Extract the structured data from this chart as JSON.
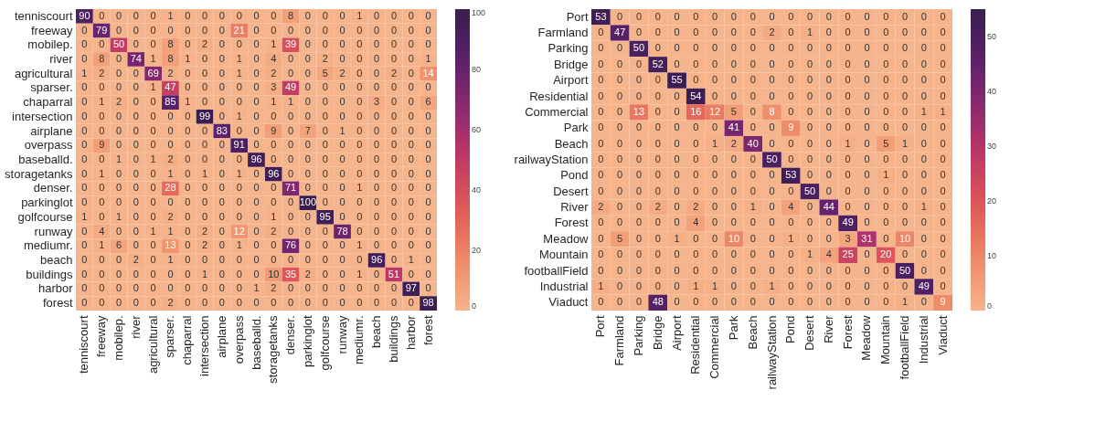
{
  "chart_data": [
    {
      "type": "heatmap",
      "categories": [
        "tenniscourt",
        "freeway",
        "mobilep.",
        "river",
        "agricultural",
        "sparser.",
        "chaparral",
        "intersection",
        "airplane",
        "overpass",
        "baseballd.",
        "storagetanks",
        "denser.",
        "parkinglot",
        "golfcourse",
        "runway",
        "mediumr.",
        "beach",
        "buildings",
        "harbor",
        "forest"
      ],
      "y_categories": [
        "tenniscourt",
        "freeway",
        "mobilep.",
        "river",
        "agricultural",
        "sparser.",
        "chaparral",
        "intersection",
        "airplane",
        "overpass",
        "baseballd.",
        "storagetanks",
        "denser.",
        "parkinglot",
        "golfcourse",
        "runway",
        "mediumr.",
        "beach",
        "buildings",
        "harbor",
        "forest"
      ],
      "cells": [
        [
          90,
          0,
          0,
          0,
          0,
          1,
          0,
          0,
          0,
          0,
          0,
          0,
          8,
          0,
          0,
          0,
          1,
          0,
          0,
          0,
          0
        ],
        [
          0,
          79,
          0,
          0,
          0,
          0,
          0,
          0,
          0,
          21,
          0,
          0,
          0,
          0,
          0,
          0,
          0,
          0,
          0,
          0,
          0
        ],
        [
          0,
          0,
          50,
          0,
          0,
          8,
          0,
          2,
          0,
          0,
          0,
          1,
          39,
          0,
          0,
          0,
          0,
          0,
          0,
          0,
          0
        ],
        [
          0,
          8,
          0,
          74,
          1,
          8,
          1,
          0,
          0,
          1,
          0,
          4,
          0,
          0,
          2,
          0,
          0,
          0,
          0,
          0,
          1
        ],
        [
          1,
          2,
          0,
          0,
          69,
          2,
          0,
          0,
          0,
          1,
          0,
          2,
          0,
          0,
          5,
          2,
          0,
          0,
          2,
          0,
          14
        ],
        [
          0,
          0,
          0,
          0,
          1,
          47,
          0,
          0,
          0,
          0,
          0,
          3,
          49,
          0,
          0,
          0,
          0,
          0,
          0,
          0,
          0
        ],
        [
          0,
          1,
          2,
          0,
          0,
          85,
          1,
          0,
          0,
          0,
          0,
          1,
          1,
          0,
          0,
          0,
          0,
          3,
          0,
          0,
          6
        ],
        [
          0,
          0,
          0,
          0,
          0,
          0,
          0,
          99,
          0,
          1,
          0,
          0,
          0,
          0,
          0,
          0,
          0,
          0,
          0,
          0,
          0
        ],
        [
          0,
          0,
          0,
          0,
          0,
          0,
          0,
          0,
          83,
          0,
          0,
          9,
          0,
          7,
          0,
          1,
          0,
          0,
          0,
          0,
          0
        ],
        [
          0,
          9,
          0,
          0,
          0,
          0,
          0,
          0,
          0,
          91,
          0,
          0,
          0,
          0,
          0,
          0,
          0,
          0,
          0,
          0,
          0
        ],
        [
          0,
          0,
          1,
          0,
          1,
          2,
          0,
          0,
          0,
          0,
          96,
          0,
          0,
          0,
          0,
          0,
          0,
          0,
          0,
          0,
          0
        ],
        [
          0,
          1,
          0,
          0,
          0,
          1,
          0,
          1,
          0,
          1,
          0,
          96,
          0,
          0,
          0,
          0,
          0,
          0,
          0,
          0,
          0
        ],
        [
          0,
          0,
          0,
          0,
          0,
          28,
          0,
          0,
          0,
          0,
          0,
          0,
          71,
          0,
          0,
          0,
          1,
          0,
          0,
          0,
          0
        ],
        [
          0,
          0,
          0,
          0,
          0,
          0,
          0,
          0,
          0,
          0,
          0,
          0,
          0,
          100,
          0,
          0,
          0,
          0,
          0,
          0,
          0
        ],
        [
          1,
          0,
          1,
          0,
          0,
          2,
          0,
          0,
          0,
          0,
          0,
          1,
          0,
          0,
          95,
          0,
          0,
          0,
          0,
          0,
          0
        ],
        [
          0,
          4,
          0,
          0,
          1,
          1,
          0,
          2,
          0,
          12,
          0,
          2,
          0,
          0,
          0,
          78,
          0,
          0,
          0,
          0,
          0
        ],
        [
          0,
          1,
          6,
          0,
          0,
          13,
          0,
          2,
          0,
          1,
          0,
          0,
          76,
          0,
          0,
          0,
          1,
          0,
          0,
          0,
          0
        ],
        [
          0,
          0,
          0,
          2,
          0,
          1,
          0,
          0,
          0,
          0,
          0,
          0,
          0,
          0,
          0,
          0,
          0,
          96,
          0,
          1,
          0
        ],
        [
          0,
          0,
          0,
          0,
          0,
          0,
          0,
          1,
          0,
          0,
          0,
          10,
          35,
          2,
          0,
          0,
          1,
          0,
          51,
          0,
          0
        ],
        [
          0,
          0,
          0,
          0,
          0,
          0,
          0,
          0,
          0,
          0,
          1,
          2,
          0,
          0,
          0,
          0,
          0,
          0,
          0,
          97,
          0
        ],
        [
          0,
          0,
          0,
          0,
          0,
          2,
          0,
          0,
          0,
          0,
          0,
          0,
          0,
          0,
          0,
          0,
          0,
          0,
          0,
          0,
          98
        ]
      ],
      "data_labels": true,
      "clim": [
        0,
        100
      ],
      "cticks": [
        0,
        20,
        40,
        60,
        80,
        100
      ]
    },
    {
      "type": "heatmap",
      "categories": [
        "Port",
        "Farmland",
        "Parking",
        "Bridge",
        "Airport",
        "Residential",
        "Commercial",
        "Park",
        "Beach",
        "railwayStation",
        "Pond",
        "Desert",
        "River",
        "Forest",
        "Meadow",
        "Mountain",
        "footballField",
        "Industrial",
        "Viaduct"
      ],
      "y_categories": [
        "Port",
        "Farmland",
        "Parking",
        "Bridge",
        "Airport",
        "Residential",
        "Commercial",
        "Park",
        "Beach",
        "railwayStation",
        "Pond",
        "Desert",
        "River",
        "Forest",
        "Meadow",
        "Mountain",
        "footballField",
        "Industrial",
        "Viaduct"
      ],
      "cells": [
        [
          53,
          0,
          0,
          0,
          0,
          0,
          0,
          0,
          0,
          0,
          0,
          0,
          0,
          0,
          0,
          0,
          0,
          0,
          0
        ],
        [
          0,
          47,
          0,
          0,
          0,
          0,
          0,
          0,
          0,
          2,
          0,
          1,
          0,
          0,
          0,
          0,
          0,
          0,
          0
        ],
        [
          0,
          0,
          50,
          0,
          0,
          0,
          0,
          0,
          0,
          0,
          0,
          0,
          0,
          0,
          0,
          0,
          0,
          0,
          0
        ],
        [
          0,
          0,
          0,
          52,
          0,
          0,
          0,
          0,
          0,
          0,
          0,
          0,
          0,
          0,
          0,
          0,
          0,
          0,
          0
        ],
        [
          0,
          0,
          0,
          0,
          55,
          0,
          0,
          0,
          0,
          0,
          0,
          0,
          0,
          0,
          0,
          0,
          0,
          0,
          0
        ],
        [
          0,
          0,
          0,
          0,
          0,
          54,
          0,
          0,
          0,
          0,
          0,
          0,
          0,
          0,
          0,
          0,
          0,
          0,
          0
        ],
        [
          0,
          0,
          13,
          0,
          0,
          16,
          12,
          5,
          0,
          8,
          0,
          0,
          0,
          0,
          0,
          0,
          0,
          1,
          1
        ],
        [
          0,
          0,
          0,
          0,
          0,
          0,
          0,
          41,
          0,
          0,
          9,
          0,
          0,
          0,
          0,
          0,
          0,
          0,
          0
        ],
        [
          0,
          0,
          0,
          0,
          0,
          0,
          1,
          2,
          40,
          0,
          0,
          0,
          0,
          1,
          0,
          5,
          1,
          0,
          0
        ],
        [
          0,
          0,
          0,
          0,
          0,
          0,
          0,
          0,
          0,
          50,
          0,
          0,
          0,
          0,
          0,
          0,
          0,
          0,
          0
        ],
        [
          0,
          0,
          0,
          0,
          0,
          0,
          0,
          0,
          0,
          0,
          53,
          0,
          0,
          0,
          0,
          1,
          0,
          0,
          0
        ],
        [
          0,
          0,
          0,
          0,
          0,
          0,
          0,
          0,
          0,
          0,
          0,
          50,
          0,
          0,
          0,
          0,
          0,
          0,
          0
        ],
        [
          2,
          0,
          0,
          2,
          0,
          2,
          0,
          0,
          1,
          0,
          4,
          0,
          44,
          0,
          0,
          0,
          0,
          1,
          0
        ],
        [
          0,
          0,
          0,
          0,
          0,
          4,
          0,
          0,
          0,
          0,
          0,
          0,
          0,
          49,
          0,
          0,
          0,
          0,
          0
        ],
        [
          0,
          5,
          0,
          0,
          1,
          0,
          0,
          10,
          0,
          0,
          1,
          0,
          0,
          3,
          31,
          0,
          10,
          0,
          0
        ],
        [
          0,
          0,
          0,
          0,
          0,
          0,
          0,
          0,
          0,
          0,
          0,
          1,
          4,
          25,
          0,
          20,
          0,
          0,
          0
        ],
        [
          0,
          0,
          0,
          0,
          0,
          0,
          0,
          0,
          0,
          0,
          0,
          0,
          0,
          0,
          0,
          0,
          50,
          0,
          0
        ],
        [
          1,
          0,
          0,
          0,
          0,
          1,
          1,
          0,
          0,
          1,
          0,
          0,
          0,
          0,
          0,
          0,
          0,
          49,
          0
        ],
        [
          0,
          0,
          0,
          48,
          0,
          0,
          0,
          0,
          0,
          0,
          0,
          0,
          0,
          0,
          0,
          0,
          1,
          0,
          9
        ]
      ],
      "data_labels": true,
      "clim": [
        0,
        55
      ],
      "cticks": [
        0,
        10,
        20,
        30,
        40,
        50
      ]
    }
  ]
}
